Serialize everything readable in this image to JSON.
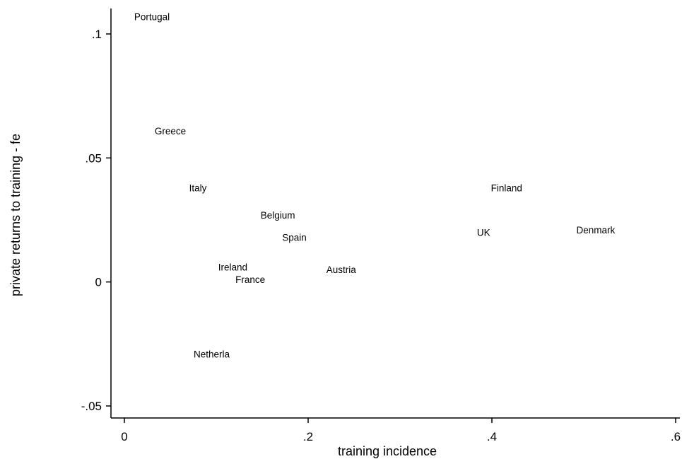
{
  "chart_data": {
    "type": "scatter",
    "title": "",
    "xlabel": "training incidence",
    "ylabel": "private returns to training - fe",
    "xlim": [
      0,
      0.6
    ],
    "ylim": [
      -0.05,
      0.1
    ],
    "x_ticks": [
      {
        "value": 0,
        "label": "0"
      },
      {
        "value": 0.2,
        "label": ".2"
      },
      {
        "value": 0.4,
        "label": ".4"
      },
      {
        "value": 0.6,
        "label": ".6"
      }
    ],
    "y_ticks": [
      {
        "value": -0.05,
        "label": "-.05"
      },
      {
        "value": 0,
        "label": "0"
      },
      {
        "value": 0.05,
        "label": ".05"
      },
      {
        "value": 0.1,
        "label": ".1"
      }
    ],
    "grid": false,
    "marker": "label",
    "points": [
      {
        "label": "Portugal",
        "x": 0.03,
        "y": 0.107
      },
      {
        "label": "Greece",
        "x": 0.05,
        "y": 0.061
      },
      {
        "label": "Italy",
        "x": 0.08,
        "y": 0.038
      },
      {
        "label": "Belgium",
        "x": 0.167,
        "y": 0.027
      },
      {
        "label": "Spain",
        "x": 0.185,
        "y": 0.018
      },
      {
        "label": "Ireland",
        "x": 0.118,
        "y": 0.006
      },
      {
        "label": "France",
        "x": 0.137,
        "y": 0.001
      },
      {
        "label": "Austria",
        "x": 0.236,
        "y": 0.005
      },
      {
        "label": "Netherla",
        "x": 0.095,
        "y": -0.029
      },
      {
        "label": "UK",
        "x": 0.391,
        "y": 0.02
      },
      {
        "label": "Finland",
        "x": 0.416,
        "y": 0.038
      },
      {
        "label": "Denmark",
        "x": 0.513,
        "y": 0.021
      }
    ]
  }
}
